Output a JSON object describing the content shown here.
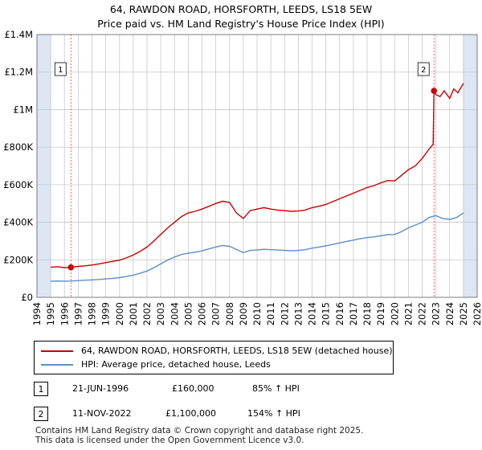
{
  "header": {
    "line1": "64, RAWDON ROAD, HORSFORTH, LEEDS, LS18 5EW",
    "line2": "Price paid vs. HM Land Registry's House Price Index (HPI)"
  },
  "colors": {
    "property": "#cc0000",
    "hpi": "#5b8fc9",
    "shade": "#dce6f5",
    "grid": "#c8c8c8",
    "marker_line": "#ee5555"
  },
  "chart_data": {
    "type": "line",
    "title": "Price paid vs. HM Land Registry's House Price Index (HPI)",
    "x_range": [
      1994,
      2026
    ],
    "ylim": [
      0,
      1400000
    ],
    "x_ticks": [
      "1994",
      "1995",
      "1996",
      "1997",
      "1998",
      "1999",
      "2000",
      "2001",
      "2002",
      "2003",
      "2004",
      "2005",
      "2006",
      "2007",
      "2008",
      "2009",
      "2010",
      "2011",
      "2012",
      "2013",
      "2014",
      "2015",
      "2016",
      "2017",
      "2018",
      "2019",
      "2020",
      "2021",
      "2022",
      "2023",
      "2024",
      "2025",
      "2026"
    ],
    "y_ticks": [
      {
        "value": 0,
        "label": "£0"
      },
      {
        "value": 200000,
        "label": "£200K"
      },
      {
        "value": 400000,
        "label": "£400K"
      },
      {
        "value": 600000,
        "label": "£600K"
      },
      {
        "value": 800000,
        "label": "£800K"
      },
      {
        "value": 1000000,
        "label": "£1M"
      },
      {
        "value": 1200000,
        "label": "£1.2M"
      },
      {
        "value": 1400000,
        "label": "£1.4M"
      }
    ],
    "shaded_ranges": [
      [
        1994,
        1995
      ],
      [
        2025.0,
        2026
      ]
    ],
    "series": [
      {
        "name": "64, RAWDON ROAD, HORSFORTH, LEEDS, LS18 5EW (detached house)",
        "x": [
          1995.0,
          1995.5,
          1996.0,
          1996.47,
          1997.0,
          1997.5,
          1998.0,
          1998.5,
          1999.0,
          1999.5,
          2000.0,
          2000.5,
          2001.0,
          2001.5,
          2002.0,
          2002.5,
          2003.0,
          2003.5,
          2004.0,
          2004.5,
          2005.0,
          2005.5,
          2006.0,
          2006.5,
          2007.0,
          2007.5,
          2008.0,
          2008.5,
          2009.0,
          2009.5,
          2010.0,
          2010.5,
          2011.0,
          2011.5,
          2012.0,
          2012.5,
          2013.0,
          2013.5,
          2014.0,
          2014.5,
          2015.0,
          2015.5,
          2016.0,
          2016.5,
          2017.0,
          2017.5,
          2018.0,
          2018.5,
          2019.0,
          2019.5,
          2020.0,
          2020.5,
          2021.0,
          2021.5,
          2022.0,
          2022.5,
          2022.8,
          2022.86,
          2023.0,
          2023.3,
          2023.6,
          2024.0,
          2024.3,
          2024.6,
          2025.0
        ],
        "values": [
          160000,
          163000,
          158000,
          160000,
          165000,
          168000,
          172000,
          178000,
          185000,
          192000,
          198000,
          210000,
          225000,
          245000,
          268000,
          300000,
          335000,
          370000,
          400000,
          430000,
          450000,
          458000,
          470000,
          485000,
          500000,
          512000,
          505000,
          450000,
          420000,
          462000,
          470000,
          478000,
          470000,
          465000,
          462000,
          458000,
          460000,
          465000,
          478000,
          485000,
          495000,
          510000,
          525000,
          540000,
          555000,
          570000,
          585000,
          595000,
          610000,
          622000,
          620000,
          650000,
          680000,
          700000,
          740000,
          790000,
          815000,
          1100000,
          1080000,
          1070000,
          1100000,
          1060000,
          1110000,
          1090000,
          1140000
        ],
        "color": "#cc0000"
      },
      {
        "name": "HPI: Average price, detached house, Leeds",
        "x": [
          1995.0,
          1995.5,
          1996.0,
          1996.5,
          1997.0,
          1997.5,
          1998.0,
          1998.5,
          1999.0,
          1999.5,
          2000.0,
          2000.5,
          2001.0,
          2001.5,
          2002.0,
          2002.5,
          2003.0,
          2003.5,
          2004.0,
          2004.5,
          2005.0,
          2005.5,
          2006.0,
          2006.5,
          2007.0,
          2007.5,
          2008.0,
          2008.5,
          2009.0,
          2009.5,
          2010.0,
          2010.5,
          2011.0,
          2011.5,
          2012.0,
          2012.5,
          2013.0,
          2013.5,
          2014.0,
          2014.5,
          2015.0,
          2015.5,
          2016.0,
          2016.5,
          2017.0,
          2017.5,
          2018.0,
          2018.5,
          2019.0,
          2019.5,
          2020.0,
          2020.5,
          2021.0,
          2021.5,
          2022.0,
          2022.5,
          2023.0,
          2023.5,
          2024.0,
          2024.5,
          2025.0
        ],
        "values": [
          86000,
          87000,
          86000,
          87000,
          89000,
          91000,
          93000,
          95000,
          98000,
          101000,
          105000,
          111000,
          118000,
          128000,
          140000,
          158000,
          178000,
          198000,
          215000,
          228000,
          235000,
          240000,
          248000,
          258000,
          268000,
          276000,
          272000,
          255000,
          238000,
          250000,
          252000,
          256000,
          254000,
          252000,
          250000,
          248000,
          250000,
          254000,
          262000,
          268000,
          274000,
          282000,
          290000,
          298000,
          305000,
          312000,
          318000,
          322000,
          328000,
          334000,
          335000,
          350000,
          370000,
          385000,
          400000,
          425000,
          435000,
          420000,
          415000,
          425000,
          450000
        ],
        "color": "#5b8fc9"
      }
    ],
    "annotations": [
      {
        "label": "1",
        "x": 1996.47,
        "value": 160000
      },
      {
        "label": "2",
        "x": 2022.86,
        "value": 1100000
      }
    ]
  },
  "legend": {
    "property_label": "64, RAWDON ROAD, HORSFORTH, LEEDS, LS18 5EW (detached house)",
    "hpi_label": "HPI: Average price, detached house, Leeds"
  },
  "sales": [
    {
      "num": "1",
      "date": "21-JUN-1996",
      "price": "£160,000",
      "hpi": "85% ↑ HPI"
    },
    {
      "num": "2",
      "date": "11-NOV-2022",
      "price": "£1,100,000",
      "hpi": "154% ↑ HPI"
    }
  ],
  "footer": {
    "line1": "Contains HM Land Registry data © Crown copyright and database right 2025.",
    "line2": "This data is licensed under the Open Government Licence v3.0."
  }
}
